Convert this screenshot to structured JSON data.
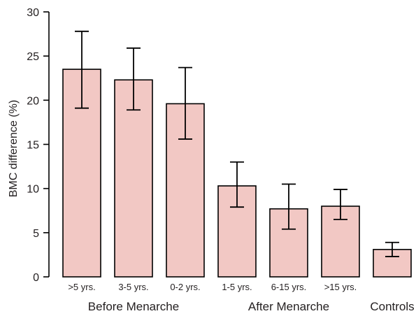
{
  "chart_data": {
    "type": "bar",
    "ylabel": "BMC difference (%)",
    "xlabel": "",
    "ylim": [
      0,
      30
    ],
    "yticks": [
      0,
      5,
      10,
      15,
      20,
      25,
      30
    ],
    "grid": false,
    "bar_color": "#f2c8c4",
    "edge_color": "#000000",
    "categories": [
      ">5 yrs.",
      "3-5 yrs.",
      "0-2 yrs.",
      "1-5 yrs.",
      "6-15 yrs.",
      ">15 yrs.",
      ""
    ],
    "values": [
      23.5,
      22.3,
      19.6,
      10.3,
      7.7,
      8.0,
      3.1
    ],
    "error_low": [
      19.1,
      18.9,
      15.6,
      7.9,
      5.4,
      6.5,
      2.3
    ],
    "error_high": [
      27.8,
      25.9,
      23.7,
      13.0,
      10.5,
      9.9,
      3.9
    ],
    "groups": [
      {
        "label": "Before Menarche",
        "members": [
          0,
          1,
          2
        ]
      },
      {
        "label": "After Menarche",
        "members": [
          3,
          4,
          5
        ]
      },
      {
        "label": "Controls",
        "members": [
          6
        ]
      }
    ]
  }
}
